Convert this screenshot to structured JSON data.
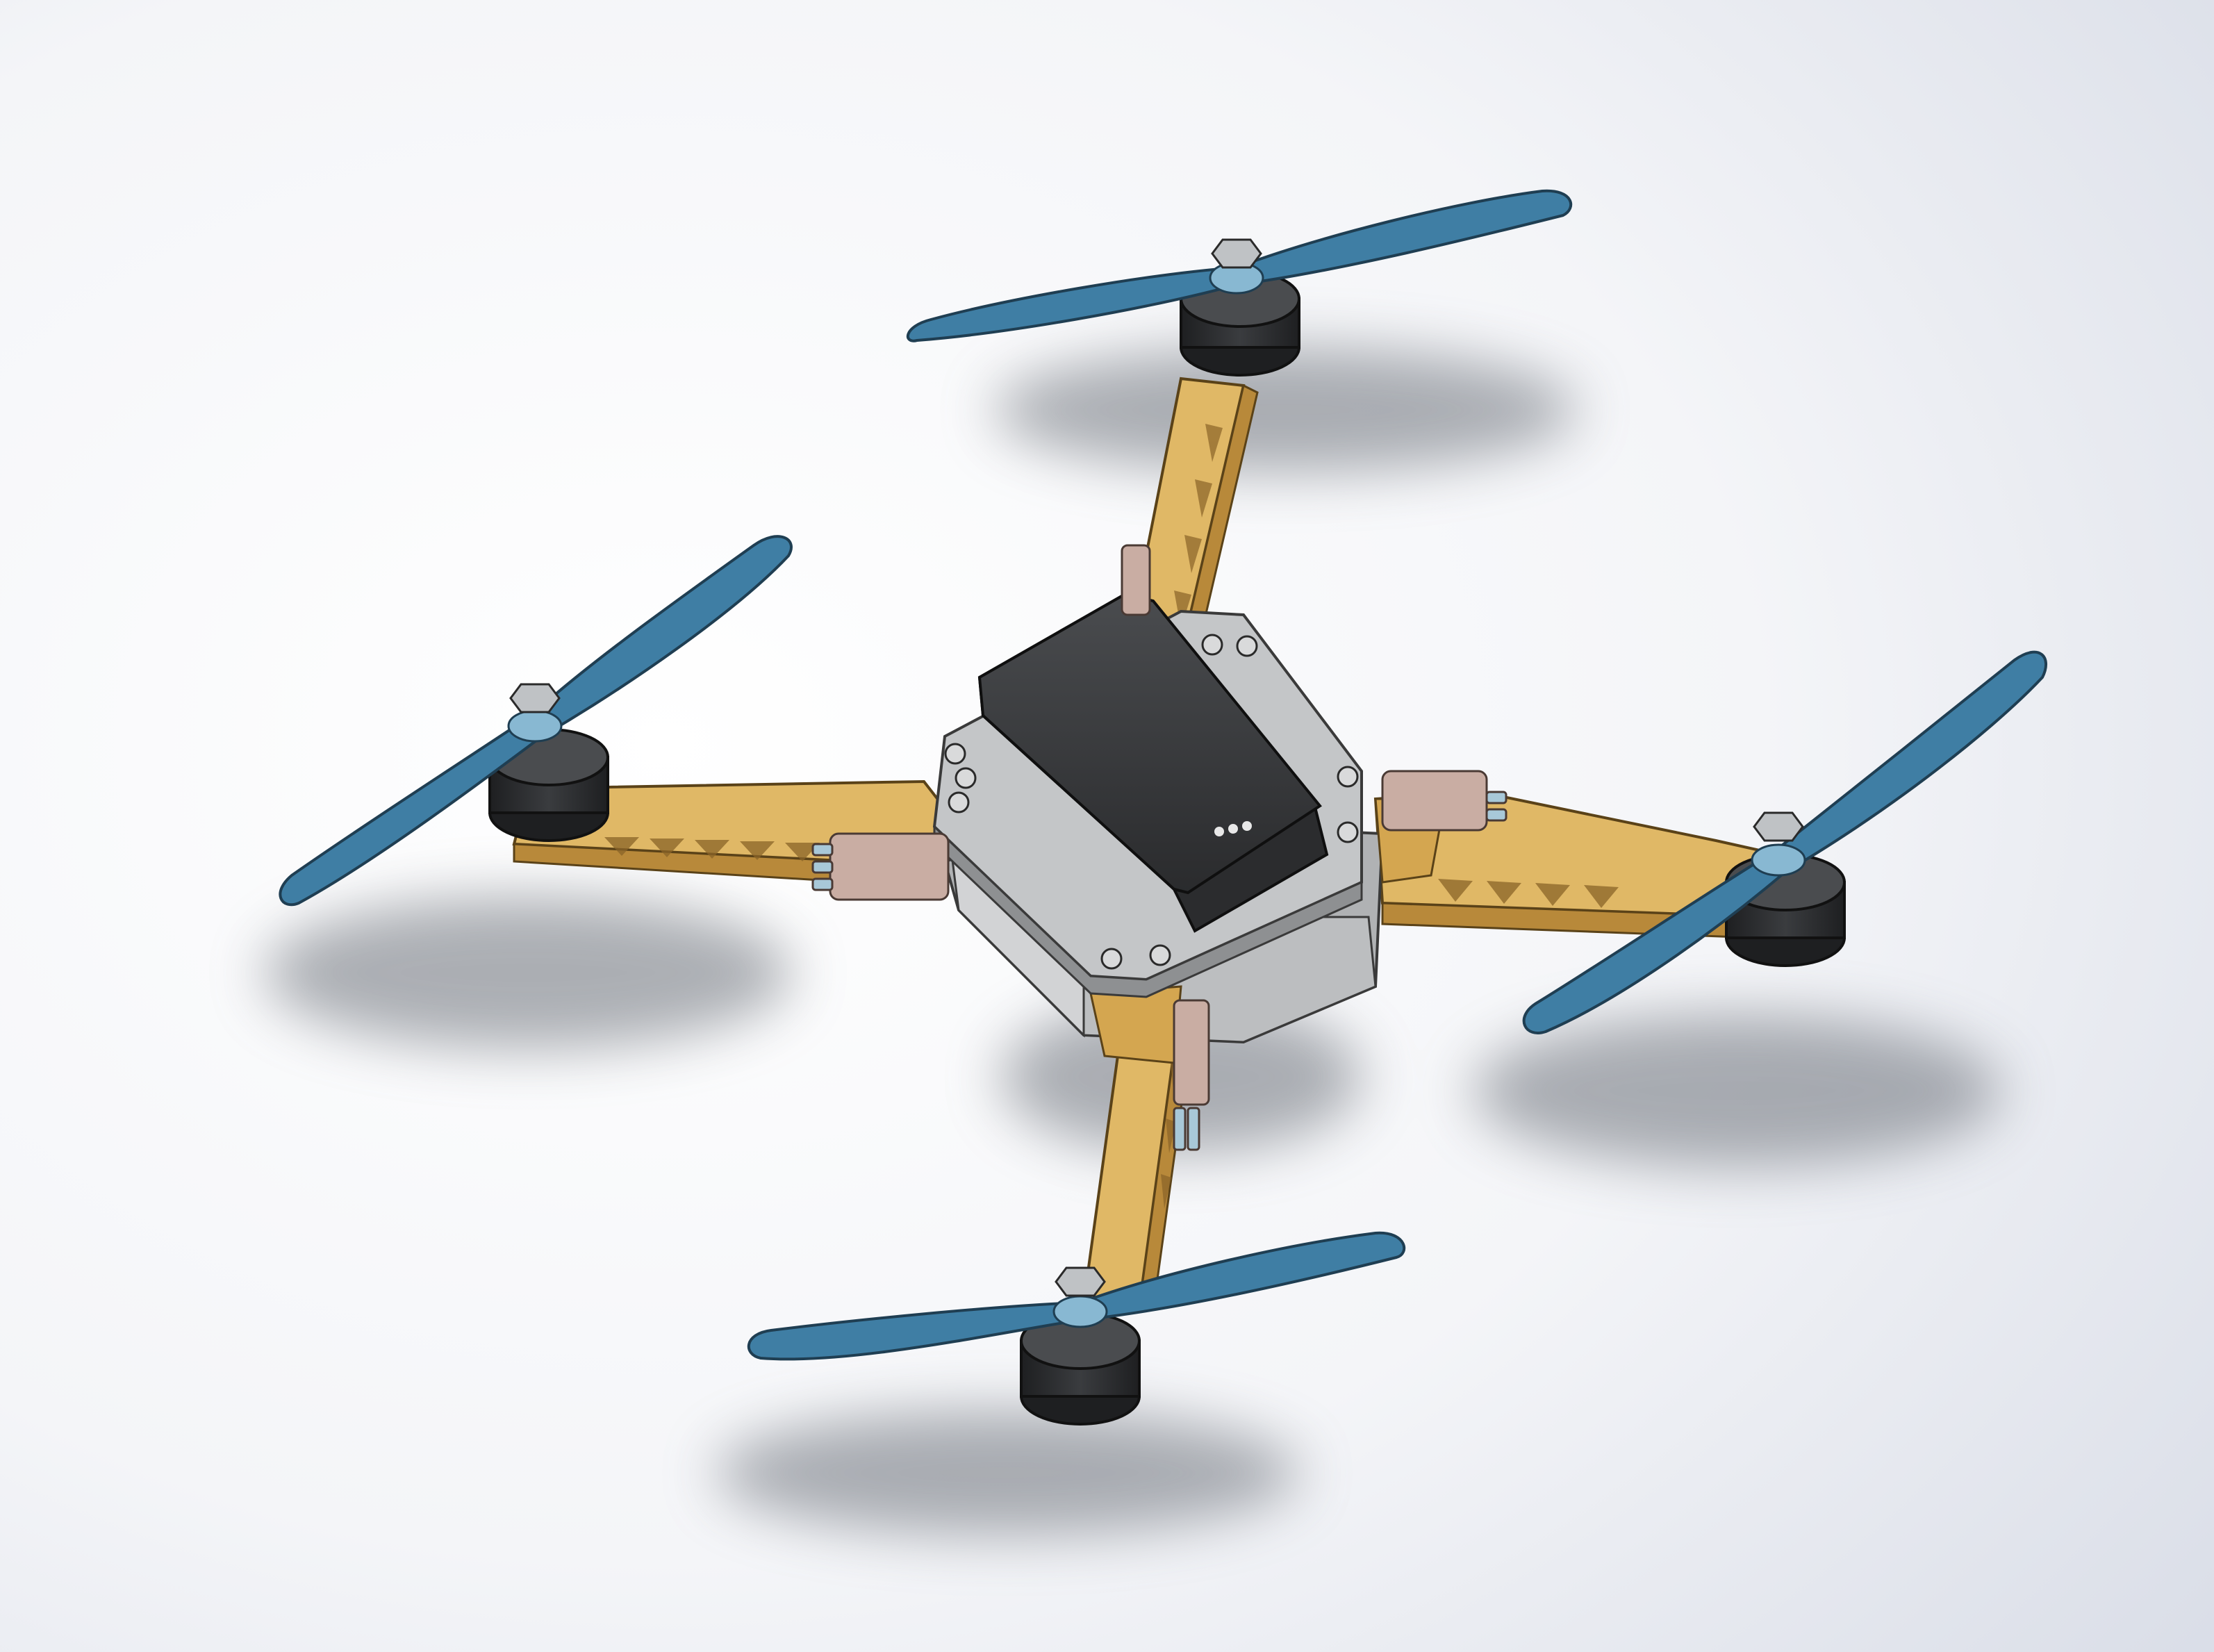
{
  "scene": {
    "subject": "quadcopter-cad-model",
    "view": "isometric",
    "background_top": "#dfe2ea",
    "background_bottom": "#ffffff"
  },
  "colors": {
    "propeller": "#3f7ea4",
    "propeller_edge": "#1f3e52",
    "arm": "#e0b866",
    "arm_dark": "#b8893a",
    "arm_edge": "#5a4218",
    "motor": "#2f3133",
    "motor_edge": "#111111",
    "plate": "#c4c6c8",
    "plate_edge": "#3a3a3a",
    "battery": "#3a3c3e",
    "battery_edge": "#0f0f0f",
    "standoff": "#c9ada3",
    "nut": "#bfc2c5",
    "led": "#e8e8e8",
    "shadow": "#5a5e66"
  },
  "components": {
    "propellers": 4,
    "motors": 4,
    "arms": 4,
    "battery_led_count": 3
  }
}
